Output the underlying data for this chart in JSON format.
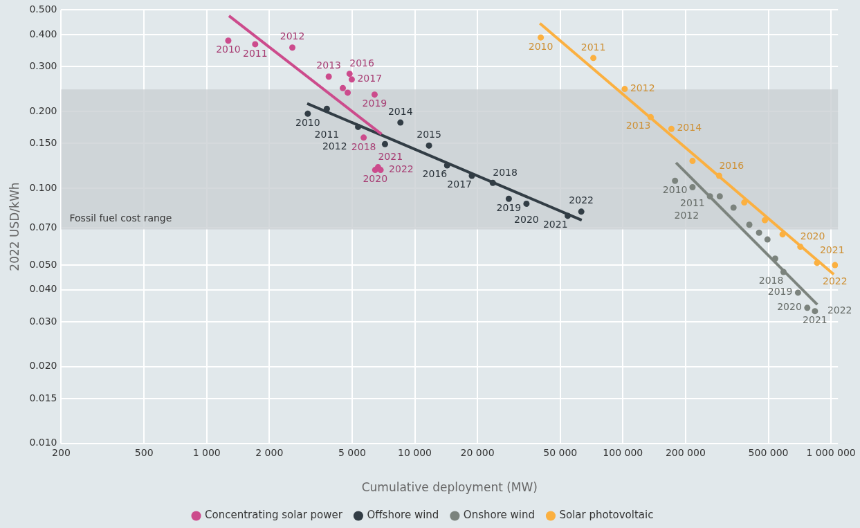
{
  "chart_data": {
    "type": "scatter",
    "xlabel": "Cumulative deployment (MW)",
    "ylabel": "2022 USD/kWh",
    "log": "xy",
    "grid": true,
    "legend": "bottom",
    "marker": "circle",
    "xlim": [
      200,
      1080000
    ],
    "ylim": [
      0.01,
      0.5
    ],
    "xticks": [
      200,
      500,
      {
        "value": 1000,
        "label": "1 000"
      },
      {
        "value": 2000,
        "label": "2 000"
      },
      {
        "value": 5000,
        "label": "5 000"
      },
      {
        "value": 10000,
        "label": "10 000"
      },
      {
        "value": 20000,
        "label": "20 000"
      },
      {
        "value": 50000,
        "label": "50 000"
      },
      {
        "value": 100000,
        "label": "100 000"
      },
      {
        "value": 200000,
        "label": "200 000"
      },
      {
        "value": 500000,
        "label": "500 000"
      },
      {
        "value": 1000000,
        "label": "1 000 000"
      }
    ],
    "yticks": [
      {
        "value": 0.01,
        "label": "0.010"
      },
      {
        "value": 0.015,
        "label": "0.015"
      },
      {
        "value": 0.02,
        "label": "0.020"
      },
      {
        "value": 0.03,
        "label": "0.030"
      },
      {
        "value": 0.04,
        "label": "0.040"
      },
      {
        "value": 0.05,
        "label": "0.050"
      },
      {
        "value": 0.07,
        "label": "0.070"
      },
      {
        "value": 0.1,
        "label": "0.100"
      },
      {
        "value": 0.15,
        "label": "0.150"
      },
      {
        "value": 0.2,
        "label": "0.200"
      },
      {
        "value": 0.3,
        "label": "0.300"
      },
      {
        "value": 0.4,
        "label": "0.400"
      },
      {
        "value": 0.5,
        "label": "0.500"
      }
    ],
    "bands": [
      {
        "axis": "y",
        "from": 0.069,
        "to": 0.244,
        "label": "Fossil fuel cost range",
        "color": "#cbd0d3"
      }
    ],
    "series": [
      {
        "name": "Concentrating solar power",
        "color": "#cc4b8c",
        "x": [
          1270,
          1710,
          2580,
          3860,
          4510,
          4760,
          4860,
          4980,
          5680,
          6410,
          6450,
          6660,
          6850
        ],
        "values": [
          0.379,
          0.367,
          0.356,
          0.274,
          0.247,
          0.237,
          0.281,
          0.267,
          0.158,
          0.233,
          0.118,
          0.121,
          0.118
        ]
      },
      {
        "name": "Offshore wind",
        "color": "#323d45",
        "x": [
          3060,
          3780,
          5340,
          7190,
          8530,
          11700,
          14300,
          18800,
          23700,
          28300,
          34400,
          54300,
          63100
        ],
        "values": [
          0.196,
          0.205,
          0.174,
          0.149,
          0.181,
          0.147,
          0.123,
          0.112,
          0.105,
          0.091,
          0.087,
          0.078,
          0.081
        ]
      },
      {
        "name": "Onshore wind",
        "color": "#7b837d",
        "x": [
          178000,
          216000,
          262000,
          292000,
          340000,
          405000,
          451000,
          495000,
          539000,
          591000,
          694000,
          769000,
          837000
        ],
        "values": [
          0.107,
          0.101,
          0.093,
          0.093,
          0.084,
          0.072,
          0.067,
          0.063,
          0.053,
          0.047,
          0.039,
          0.034,
          0.033
        ]
      },
      {
        "name": "Solar photovoltaic",
        "color": "#fbb040",
        "x": [
          40300,
          72100,
          102000,
          136000,
          171000,
          216000,
          290000,
          383000,
          481000,
          585000,
          712000,
          857000,
          1045000
        ],
        "values": [
          0.39,
          0.324,
          0.245,
          0.19,
          0.171,
          0.128,
          0.112,
          0.088,
          0.075,
          0.066,
          0.059,
          0.051,
          0.05
        ]
      },
      {
        "type": "line",
        "marker": "none",
        "color": "#cc4b8c",
        "x": [
          1280,
          6920
        ],
        "values": [
          0.474,
          0.163
        ]
      },
      {
        "type": "line",
        "marker": "none",
        "color": "#323d45",
        "x": [
          3040,
          63400
        ],
        "values": [
          0.215,
          0.075
        ]
      },
      {
        "type": "line",
        "marker": "none",
        "color": "#7b837d",
        "x": [
          180000,
          859000
        ],
        "values": [
          0.126,
          0.035
        ]
      },
      {
        "type": "line",
        "marker": "none",
        "color": "#fbb040",
        "x": [
          39900,
          1031000
        ],
        "values": [
          0.443,
          0.046
        ]
      }
    ],
    "annotations": [
      {
        "text": "2010",
        "x": 1270,
        "y": 0.379
      },
      {
        "text": "2011",
        "x": 1710,
        "y": 0.367
      },
      {
        "text": "2012",
        "x": 2580,
        "y": 0.356
      },
      {
        "text": "2013",
        "x": 3860,
        "y": 0.274
      },
      {
        "text": "2016",
        "x": 4860,
        "y": 0.281
      },
      {
        "text": "2017",
        "x": 4980,
        "y": 0.267
      },
      {
        "text": "2019",
        "x": 6410,
        "y": 0.233
      },
      {
        "text": "2018",
        "x": 5680,
        "y": 0.158
      },
      {
        "text": "2021",
        "x": 6660,
        "y": 0.121
      },
      {
        "text": "2020",
        "x": 6450,
        "y": 0.118
      },
      {
        "text": "2022",
        "x": 6850,
        "y": 0.118
      },
      {
        "text": "2010",
        "x": 3060,
        "y": 0.196
      },
      {
        "text": "2011",
        "x": 3780,
        "y": 0.205
      },
      {
        "text": "2012",
        "x": 5340,
        "y": 0.174
      },
      {
        "text": "2014",
        "x": 8530,
        "y": 0.181
      },
      {
        "text": "2015",
        "x": 11700,
        "y": 0.147
      },
      {
        "text": "2016",
        "x": 14300,
        "y": 0.123
      },
      {
        "text": "2017",
        "x": 18800,
        "y": 0.112
      },
      {
        "text": "2018",
        "x": 23700,
        "y": 0.105
      },
      {
        "text": "2019",
        "x": 28300,
        "y": 0.091
      },
      {
        "text": "2020",
        "x": 34400,
        "y": 0.087
      },
      {
        "text": "2021",
        "x": 54300,
        "y": 0.078
      },
      {
        "text": "2022",
        "x": 63100,
        "y": 0.081
      },
      {
        "text": "2010",
        "x": 178000,
        "y": 0.107
      },
      {
        "text": "2011",
        "x": 216000,
        "y": 0.101
      },
      {
        "text": "2012",
        "x": 262000,
        "y": 0.093
      },
      {
        "text": "2018",
        "x": 591000,
        "y": 0.047
      },
      {
        "text": "2019",
        "x": 694000,
        "y": 0.039
      },
      {
        "text": "2020",
        "x": 769000,
        "y": 0.034
      },
      {
        "text": "2021",
        "x": 837000,
        "y": 0.033
      },
      {
        "text": "2022",
        "x": 837000,
        "y": 0.033
      },
      {
        "text": "2010",
        "x": 40300,
        "y": 0.39
      },
      {
        "text": "2011",
        "x": 72100,
        "y": 0.324
      },
      {
        "text": "2012",
        "x": 102000,
        "y": 0.245
      },
      {
        "text": "2013",
        "x": 136000,
        "y": 0.19
      },
      {
        "text": "2014",
        "x": 171000,
        "y": 0.171
      },
      {
        "text": "2016",
        "x": 290000,
        "y": 0.112
      },
      {
        "text": "2020",
        "x": 712000,
        "y": 0.059
      },
      {
        "text": "2021",
        "x": 857000,
        "y": 0.051
      },
      {
        "text": "2022",
        "x": 1045000,
        "y": 0.05
      }
    ]
  }
}
